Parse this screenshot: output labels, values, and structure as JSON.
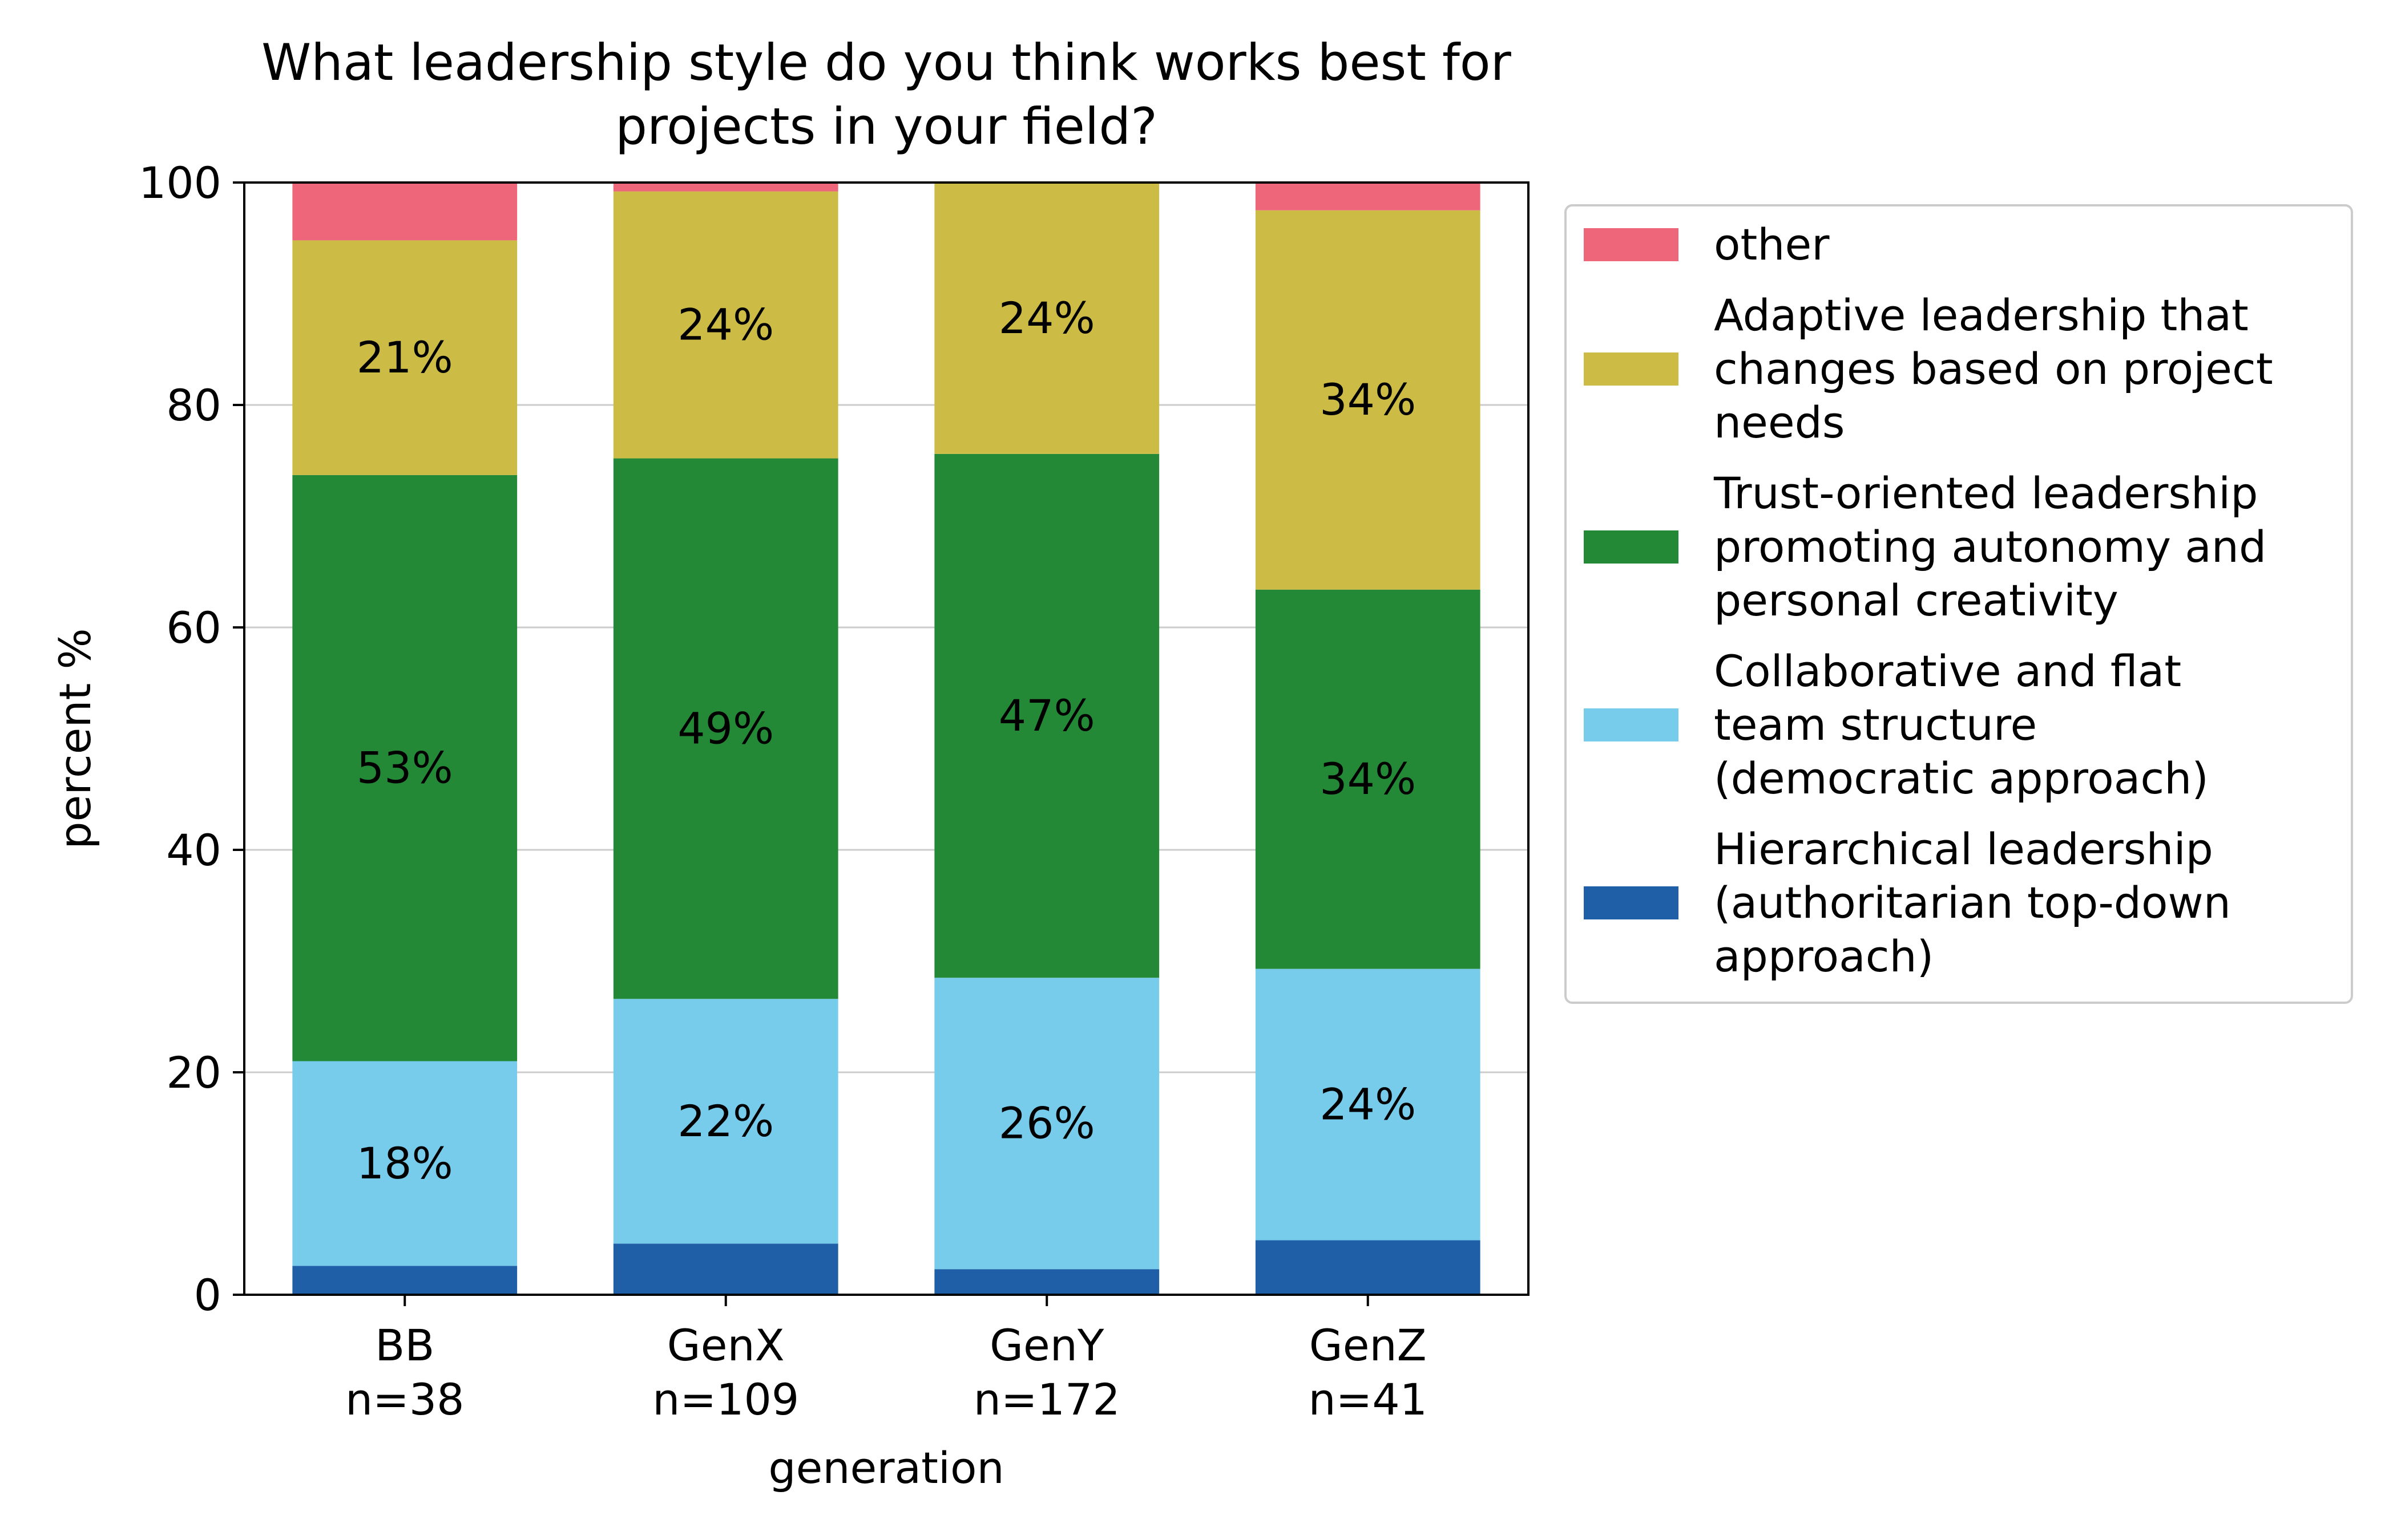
{
  "chart_data": {
    "type": "bar",
    "stacked": true,
    "title": "What leadership style do you think works best for projects in your field?",
    "title_lines": [
      "What leadership style do you think works best for",
      "projects in your field?"
    ],
    "xlabel": "generation",
    "ylabel": "percent %",
    "ylim": [
      0,
      100
    ],
    "yticks": [
      0,
      20,
      40,
      60,
      80,
      100
    ],
    "grid": "y",
    "legend_placement": "outside-right-top",
    "categories": [
      {
        "label": "BB",
        "n": "n=38"
      },
      {
        "label": "GenX",
        "n": "n=109"
      },
      {
        "label": "GenY",
        "n": "n=172"
      },
      {
        "label": "GenZ",
        "n": "n=41"
      }
    ],
    "series": [
      {
        "name": "Hierarchical leadership (authoritarian top-down approach)",
        "legend_lines": [
          "Hierarchical leadership",
          "(authoritarian top-down",
          "approach)"
        ],
        "color": "#1f5fa8",
        "values": [
          2.6,
          4.6,
          2.3,
          4.9
        ],
        "labels": [
          "",
          "",
          "",
          ""
        ]
      },
      {
        "name": "Collaborative and flat team structure (democratic approach)",
        "legend_lines": [
          "Collaborative and flat",
          "team structure",
          "(democratic approach)"
        ],
        "color": "#77ccec",
        "values": [
          18.4,
          22.0,
          26.2,
          24.4
        ],
        "labels": [
          "18%",
          "22%",
          "26%",
          "24%"
        ]
      },
      {
        "name": "Trust-oriented leadership promoting autonomy and personal creativity",
        "legend_lines": [
          "Trust-oriented leadership",
          "promoting autonomy and",
          "personal creativity"
        ],
        "color": "#248936",
        "values": [
          52.7,
          48.6,
          47.1,
          34.1
        ],
        "labels": [
          "53%",
          "49%",
          "47%",
          "34%"
        ]
      },
      {
        "name": "Adaptive leadership that changes based on project needs",
        "legend_lines": [
          "Adaptive leadership that",
          "changes based on project",
          "needs"
        ],
        "color": "#ccbb44",
        "values": [
          21.1,
          24.0,
          24.4,
          34.1
        ],
        "labels": [
          "21%",
          "24%",
          "24%",
          "34%"
        ]
      },
      {
        "name": "other",
        "legend_lines": [
          "other"
        ],
        "color": "#ee667a",
        "values": [
          5.2,
          0.8,
          0.0,
          2.5
        ],
        "labels": [
          "",
          "",
          "",
          ""
        ]
      }
    ]
  }
}
